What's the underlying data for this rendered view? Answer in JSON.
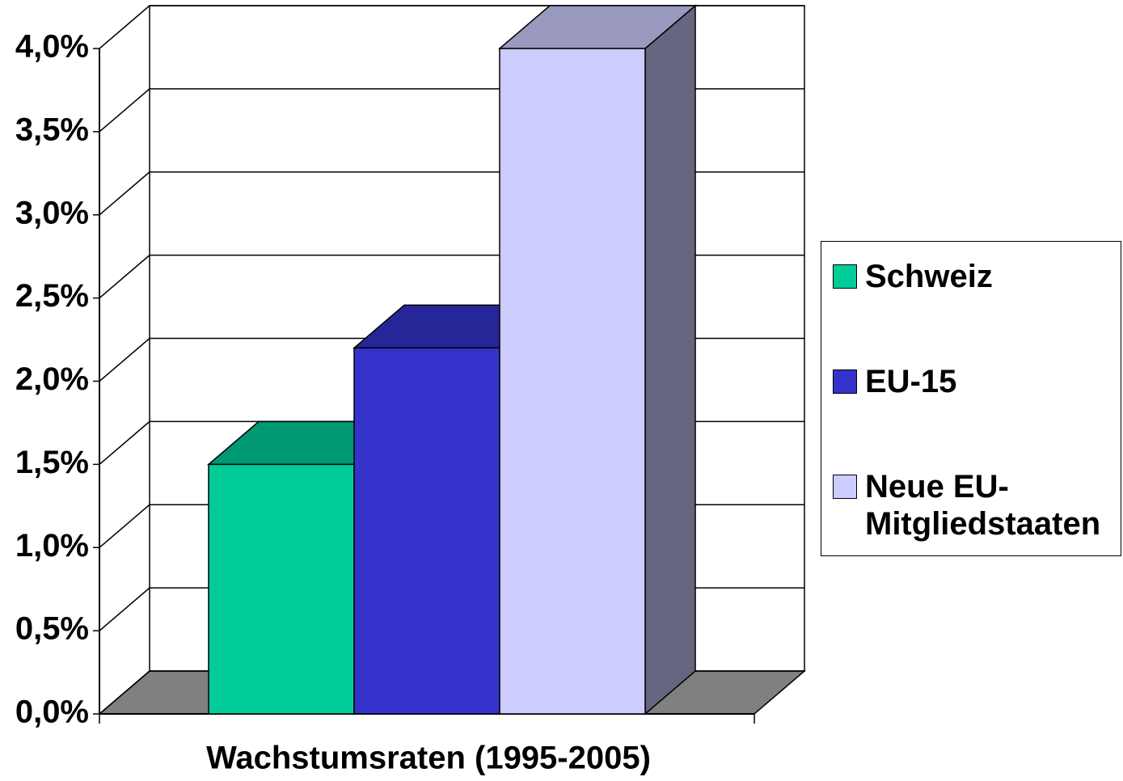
{
  "chart_data": {
    "type": "bar3d",
    "categories": [
      "Wachstumsraten (1995-2005)"
    ],
    "series": [
      {
        "name": "Schweiz",
        "color": "#00cc99",
        "values": [
          1.5
        ]
      },
      {
        "name": "EU-15",
        "color": "#3333cc",
        "values": [
          2.2
        ]
      },
      {
        "name": "Neue EU-Mitgliedstaaten",
        "color": "#ccccff",
        "values": [
          4.0
        ]
      }
    ],
    "ylim": [
      0,
      4
    ],
    "yticks": [
      {
        "value": 0,
        "label": "0,0%"
      },
      {
        "value": 0.5,
        "label": "0,5%"
      },
      {
        "value": 1,
        "label": "1,0%"
      },
      {
        "value": 1.5,
        "label": "1,5%"
      },
      {
        "value": 2,
        "label": "2,0%"
      },
      {
        "value": 2.5,
        "label": "2,5%"
      },
      {
        "value": 3,
        "label": "3,0%"
      },
      {
        "value": 3.5,
        "label": "3,5%"
      },
      {
        "value": 4,
        "label": "4,0%"
      }
    ],
    "grid": true,
    "legend": "right"
  }
}
